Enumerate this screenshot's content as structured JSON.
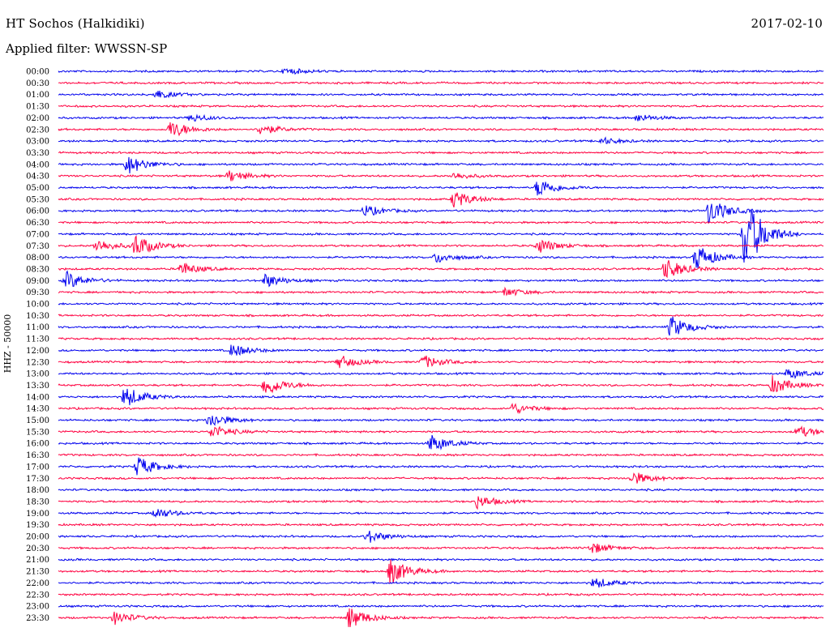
{
  "header": {
    "station_title": "HT Sochos (Halkidiki)",
    "date": "2017-02-10",
    "filter_label": "Applied filter: WWSSN-SP"
  },
  "chart_data": {
    "type": "line",
    "subtype": "helicorder",
    "ylabel": "HHZ - 50000",
    "grid": false,
    "legend": "none",
    "colors": {
      "even_rows": "#0000ee",
      "odd_rows": "#ff0040"
    },
    "rows": [
      "00:00",
      "00:30",
      "01:00",
      "01:30",
      "02:00",
      "02:30",
      "03:00",
      "03:30",
      "04:00",
      "04:30",
      "05:00",
      "05:30",
      "06:00",
      "06:30",
      "07:00",
      "07:30",
      "08:00",
      "08:30",
      "09:00",
      "09:30",
      "10:00",
      "10:30",
      "11:00",
      "11:30",
      "12:00",
      "12:30",
      "13:00",
      "13:30",
      "14:00",
      "14:30",
      "15:00",
      "15:30",
      "16:00",
      "16:30",
      "17:00",
      "17:30",
      "18:00",
      "18:30",
      "19:00",
      "19:30",
      "20:00",
      "20:30",
      "21:00",
      "21:30",
      "22:00",
      "22:30",
      "23:00",
      "23:30"
    ],
    "row_duration_minutes": 30,
    "events": [
      {
        "row": "00:00",
        "minute": 8.9,
        "amplitude": 0.3
      },
      {
        "row": "01:00",
        "minute": 3.8,
        "amplitude": 0.4
      },
      {
        "row": "02:00",
        "minute": 5.2,
        "amplitude": 0.35
      },
      {
        "row": "02:00",
        "minute": 22.7,
        "amplitude": 0.35
      },
      {
        "row": "02:30",
        "minute": 4.4,
        "amplitude": 0.8
      },
      {
        "row": "02:30",
        "minute": 7.9,
        "amplitude": 0.5
      },
      {
        "row": "03:00",
        "minute": 21.3,
        "amplitude": 0.3
      },
      {
        "row": "04:00",
        "minute": 2.7,
        "amplitude": 0.9
      },
      {
        "row": "04:30",
        "minute": 6.7,
        "amplitude": 0.5
      },
      {
        "row": "04:30",
        "minute": 15.5,
        "amplitude": 0.3
      },
      {
        "row": "05:00",
        "minute": 18.8,
        "amplitude": 0.9
      },
      {
        "row": "05:30",
        "minute": 15.5,
        "amplitude": 0.8
      },
      {
        "row": "06:00",
        "minute": 12.0,
        "amplitude": 0.5
      },
      {
        "row": "06:00",
        "minute": 25.5,
        "amplitude": 1.2
      },
      {
        "row": "07:30",
        "minute": 1.5,
        "amplitude": 0.6
      },
      {
        "row": "07:30",
        "minute": 3.0,
        "amplitude": 1.0
      },
      {
        "row": "07:30",
        "minute": 18.8,
        "amplitude": 0.7
      },
      {
        "row": "07:00",
        "minute": 26.9,
        "amplitude": 3.5
      },
      {
        "row": "08:00",
        "minute": 14.8,
        "amplitude": 0.5
      },
      {
        "row": "08:00",
        "minute": 25.0,
        "amplitude": 1.2
      },
      {
        "row": "08:30",
        "minute": 4.8,
        "amplitude": 0.6
      },
      {
        "row": "08:30",
        "minute": 23.8,
        "amplitude": 1.0
      },
      {
        "row": "09:00",
        "minute": 0.3,
        "amplitude": 0.8
      },
      {
        "row": "09:00",
        "minute": 8.1,
        "amplitude": 0.6
      },
      {
        "row": "09:30",
        "minute": 17.5,
        "amplitude": 0.4
      },
      {
        "row": "11:00",
        "minute": 24.0,
        "amplitude": 1.0
      },
      {
        "row": "12:00",
        "minute": 6.8,
        "amplitude": 0.6
      },
      {
        "row": "12:30",
        "minute": 11.0,
        "amplitude": 0.6
      },
      {
        "row": "12:30",
        "minute": 14.3,
        "amplitude": 0.6
      },
      {
        "row": "13:00",
        "minute": 28.6,
        "amplitude": 0.5
      },
      {
        "row": "13:30",
        "minute": 8.1,
        "amplitude": 1.0
      },
      {
        "row": "13:30",
        "minute": 28.0,
        "amplitude": 0.8
      },
      {
        "row": "14:00",
        "minute": 2.6,
        "amplitude": 1.0
      },
      {
        "row": "14:30",
        "minute": 17.8,
        "amplitude": 0.5
      },
      {
        "row": "15:00",
        "minute": 5.9,
        "amplitude": 0.7
      },
      {
        "row": "15:30",
        "minute": 6.0,
        "amplitude": 0.6
      },
      {
        "row": "15:30",
        "minute": 29.0,
        "amplitude": 0.5
      },
      {
        "row": "16:00",
        "minute": 14.6,
        "amplitude": 0.8
      },
      {
        "row": "17:00",
        "minute": 3.1,
        "amplitude": 0.9
      },
      {
        "row": "17:30",
        "minute": 22.5,
        "amplitude": 0.6
      },
      {
        "row": "18:30",
        "minute": 16.4,
        "amplitude": 0.6
      },
      {
        "row": "19:00",
        "minute": 3.8,
        "amplitude": 0.5
      },
      {
        "row": "20:00",
        "minute": 12.1,
        "amplitude": 0.6
      },
      {
        "row": "20:30",
        "minute": 20.9,
        "amplitude": 0.5
      },
      {
        "row": "21:30",
        "minute": 13.0,
        "amplitude": 1.2
      },
      {
        "row": "22:00",
        "minute": 21.0,
        "amplitude": 0.5
      },
      {
        "row": "23:30",
        "minute": 2.2,
        "amplitude": 0.6
      },
      {
        "row": "23:30",
        "minute": 11.4,
        "amplitude": 1.0
      }
    ]
  }
}
